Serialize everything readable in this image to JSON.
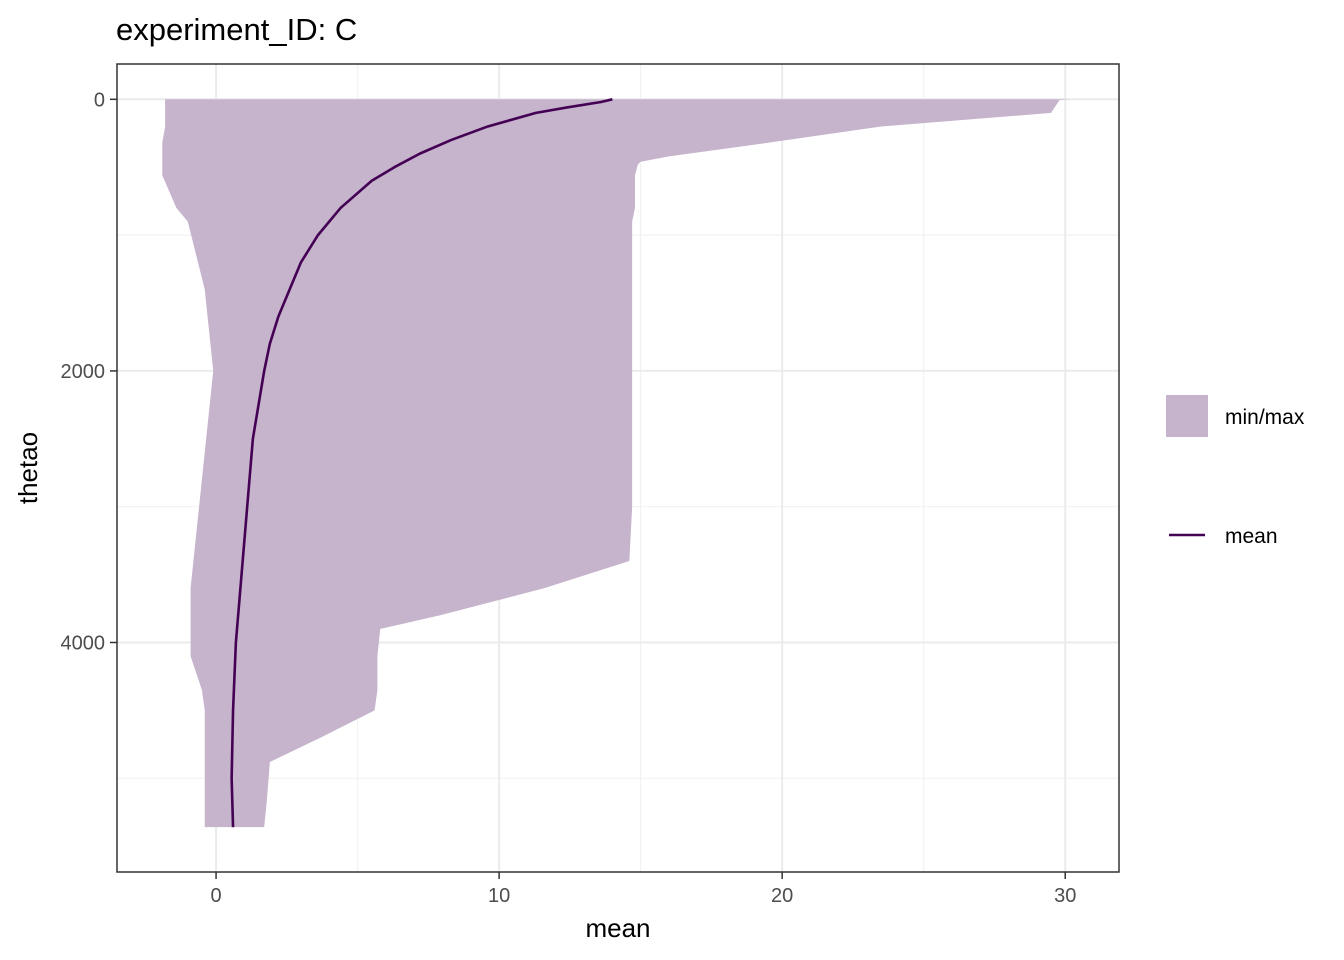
{
  "chart_data": {
    "type": "area",
    "title": "experiment_ID: C",
    "xlabel": "mean",
    "ylabel": "thetao",
    "xlim": [
      -3.5,
      31.9
    ],
    "ylim": [
      5690,
      -260
    ],
    "y_reversed": true,
    "grid": true,
    "x_ticks": [
      0,
      10,
      20,
      30
    ],
    "y_ticks": [
      0,
      2000,
      4000
    ],
    "x_minor_ticks": [
      5,
      15,
      25
    ],
    "y_minor_ticks": [
      1000,
      3000,
      5000
    ],
    "legend": {
      "position": "right",
      "entries": [
        {
          "label": "min/max",
          "kind": "ribbon",
          "color": "#c6b3cc"
        },
        {
          "label": "mean",
          "kind": "line",
          "color": "#440154"
        }
      ]
    },
    "ribbon": {
      "name": "min/max",
      "color": "#c6b3cc",
      "depth": [
        0,
        5,
        100,
        200,
        320,
        420,
        460,
        480,
        560,
        800,
        900,
        1400,
        2000,
        3000,
        3400,
        3600,
        3800,
        3900,
        4100,
        4350,
        4500,
        4700,
        4880,
        5150,
        5360
      ],
      "min": [
        -1.8,
        -1.8,
        -1.8,
        -1.8,
        -1.9,
        -1.9,
        -1.9,
        -1.9,
        -1.9,
        -1.4,
        -1.0,
        -0.4,
        -0.1,
        -0.6,
        -0.8,
        -0.9,
        -0.9,
        -0.9,
        -0.9,
        -0.5,
        -0.4,
        -0.4,
        -0.4,
        -0.4,
        -0.4
      ],
      "max": [
        30.2,
        29.8,
        29.5,
        23.5,
        19.5,
        16.0,
        15.0,
        14.9,
        14.8,
        14.8,
        14.7,
        14.7,
        14.7,
        14.7,
        14.6,
        11.6,
        7.9,
        5.8,
        5.7,
        5.7,
        5.6,
        3.7,
        1.9,
        1.8,
        1.7
      ]
    },
    "series": [
      {
        "name": "mean",
        "color": "#440154",
        "depth": [
          0,
          20,
          60,
          100,
          200,
          300,
          400,
          500,
          600,
          800,
          1000,
          1200,
          1400,
          1600,
          1800,
          2000,
          2500,
          3000,
          3500,
          4000,
          4500,
          5000,
          5360
        ],
        "values": [
          14.0,
          13.6,
          12.4,
          11.3,
          9.6,
          8.3,
          7.2,
          6.3,
          5.5,
          4.4,
          3.6,
          3.0,
          2.6,
          2.2,
          1.9,
          1.7,
          1.3,
          1.1,
          0.9,
          0.7,
          0.6,
          0.55,
          0.6
        ]
      }
    ]
  }
}
